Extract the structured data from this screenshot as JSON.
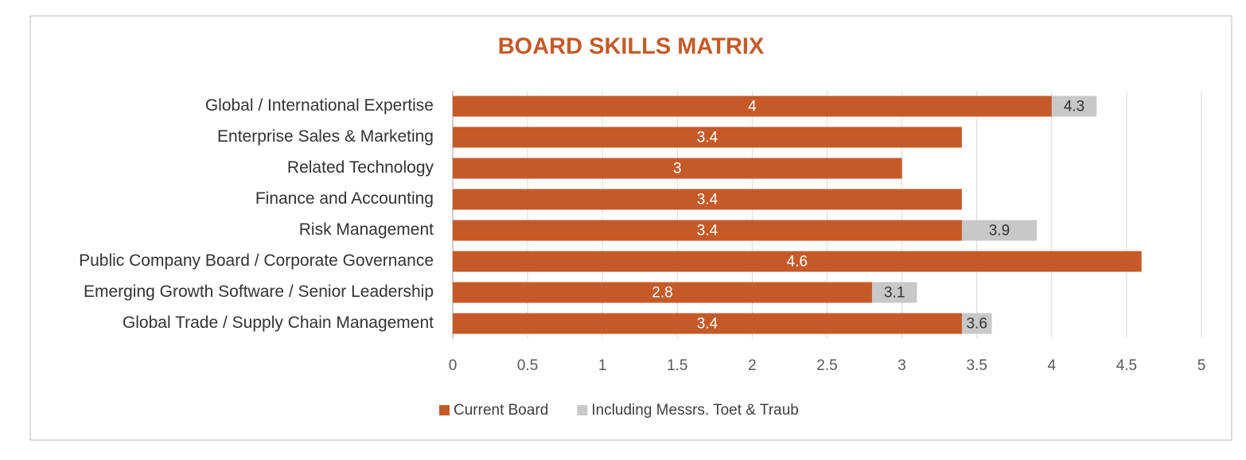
{
  "chart_data": {
    "type": "bar",
    "title": "BOARD SKILLS MATRIX",
    "categories": [
      "Global / International Expertise",
      "Enterprise Sales & Marketing",
      "Related Technology",
      "Finance and Accounting",
      "Risk Management",
      "Public Company Board / Corporate Governance",
      "Emerging Growth Software / Senior Leadership",
      "Global Trade / Supply Chain Management"
    ],
    "series": [
      {
        "name": "Current Board",
        "color": "#c55a28",
        "values": [
          4,
          3.4,
          3,
          3.4,
          3.4,
          4.6,
          2.8,
          3.4
        ]
      },
      {
        "name": "Including Messrs. Toet & Traub",
        "color": "#c8c8c8",
        "values": [
          4.3,
          null,
          null,
          null,
          3.9,
          null,
          3.1,
          3.6
        ]
      }
    ],
    "xlim": [
      0,
      5
    ],
    "xticks": [
      0,
      0.5,
      1,
      1.5,
      2,
      2.5,
      3,
      3.5,
      4,
      4.5,
      5
    ],
    "grid": true
  }
}
